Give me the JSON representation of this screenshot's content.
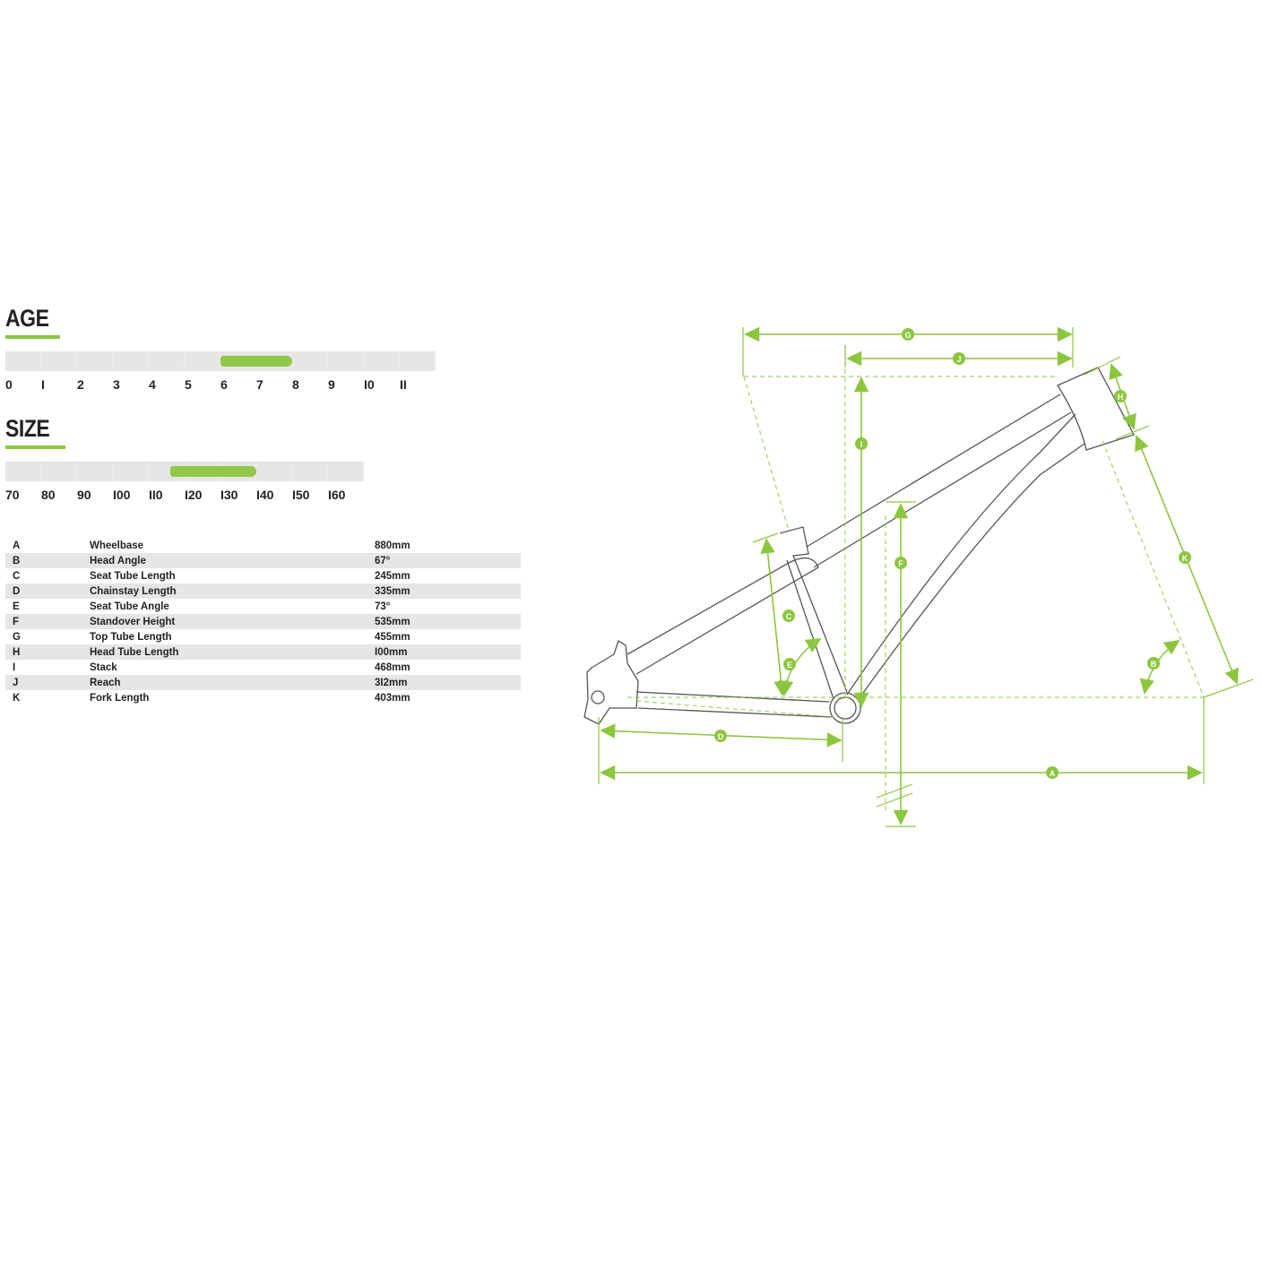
{
  "age": {
    "title": "AGE",
    "ticks": [
      "0",
      "I",
      "2",
      "3",
      "4",
      "5",
      "6",
      "7",
      "8",
      "9",
      "I0",
      "II"
    ],
    "highlight_range": [
      6,
      8
    ]
  },
  "size": {
    "title": "SIZE",
    "ticks": [
      "70",
      "80",
      "90",
      "I00",
      "II0",
      "I20",
      "I30",
      "I40",
      "I50",
      "I60"
    ],
    "highlight_range": [
      116,
      140
    ]
  },
  "specs": [
    {
      "key": "A",
      "name": "Wheelbase",
      "value": "880mm"
    },
    {
      "key": "B",
      "name": "Head Angle",
      "value": "67°"
    },
    {
      "key": "C",
      "name": "Seat Tube Length",
      "value": "245mm"
    },
    {
      "key": "D",
      "name": "Chainstay Length",
      "value": "335mm"
    },
    {
      "key": "E",
      "name": "Seat Tube Angle",
      "value": "73°"
    },
    {
      "key": "F",
      "name": "Standover Height",
      "value": "535mm"
    },
    {
      "key": "G",
      "name": "Top Tube Length",
      "value": "455mm"
    },
    {
      "key": "H",
      "name": "Head Tube Length",
      "value": "I00mm"
    },
    {
      "key": "I",
      "name": "Stack",
      "value": "468mm"
    },
    {
      "key": "J",
      "name": "Reach",
      "value": "3I2mm"
    },
    {
      "key": "K",
      "name": "Fork Length",
      "value": "403mm"
    }
  ],
  "colors": {
    "accent": "#8cc63e",
    "frame": "#555555",
    "bar_bg": "#e6e6e6"
  }
}
